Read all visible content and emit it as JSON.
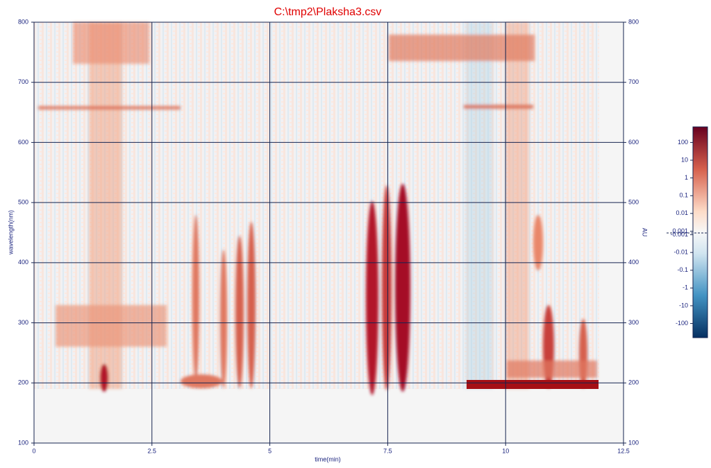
{
  "chart_data": {
    "type": "heatmap",
    "title": "C:\\tmp2\\Plaksha3.csv",
    "x_label": "time(min)",
    "y_label": "wavelength(nm)",
    "colorbar_label": "AU",
    "xlim": [
      0,
      12.5
    ],
    "xticks": [
      0,
      2.5,
      5,
      7.5,
      10,
      12.5
    ],
    "ylim": [
      100,
      800
    ],
    "yticks": [
      100,
      200,
      300,
      400,
      500,
      600,
      700,
      800
    ],
    "y2lim": [
      100,
      800
    ],
    "y2ticks": [
      100,
      200,
      300,
      400,
      500,
      600,
      700,
      800
    ],
    "colorbar_ticks": [
      100,
      10,
      1,
      0.1,
      0.01,
      0.001,
      -0.001,
      -0.01,
      -0.1,
      -1,
      -10,
      -100
    ],
    "colorbar_scale": "symlog",
    "grid": true,
    "grid_color": "#15234f"
  }
}
